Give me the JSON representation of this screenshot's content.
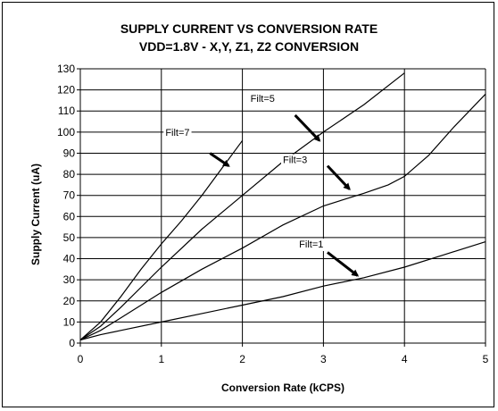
{
  "chart_data": {
    "type": "line",
    "title": "SUPPLY CURRENT VS CONVERSION RATE",
    "subtitle": "VDD=1.8V - X,Y, Z1, Z2 CONVERSION",
    "xlabel": "Conversion Rate (kCPS)",
    "ylabel": "Supply Current (uA)",
    "xlim": [
      0,
      5
    ],
    "ylim": [
      0,
      130
    ],
    "xticks": [
      0,
      1,
      2,
      3,
      4,
      5
    ],
    "yticks": [
      0,
      10,
      20,
      30,
      40,
      50,
      60,
      70,
      80,
      90,
      100,
      110,
      120,
      130
    ],
    "grid": true,
    "legend": "none",
    "series": [
      {
        "name": "Filt=7",
        "points": [
          [
            0,
            1.5
          ],
          [
            0.25,
            10
          ],
          [
            0.5,
            22
          ],
          [
            0.75,
            35
          ],
          [
            1,
            47
          ],
          [
            1.25,
            58
          ],
          [
            1.5,
            70
          ],
          [
            1.75,
            83
          ],
          [
            2,
            96
          ]
        ]
      },
      {
        "name": "Filt=5",
        "points": [
          [
            0,
            1.5
          ],
          [
            0.25,
            8
          ],
          [
            0.5,
            17
          ],
          [
            1,
            36
          ],
          [
            1.5,
            54
          ],
          [
            2,
            70
          ],
          [
            2.5,
            86
          ],
          [
            3,
            100
          ],
          [
            3.5,
            113
          ],
          [
            4,
            128
          ]
        ]
      },
      {
        "name": "Filt=3",
        "points": [
          [
            0,
            1.5
          ],
          [
            0.25,
            6
          ],
          [
            0.5,
            12
          ],
          [
            1,
            24
          ],
          [
            1.5,
            35
          ],
          [
            2,
            45
          ],
          [
            2.5,
            56
          ],
          [
            3,
            65
          ],
          [
            3.5,
            71
          ],
          [
            3.8,
            75
          ],
          [
            4,
            79
          ],
          [
            4.3,
            89
          ],
          [
            4.6,
            102
          ],
          [
            5,
            118
          ]
        ]
      },
      {
        "name": "Filt=1",
        "points": [
          [
            0,
            1.5
          ],
          [
            0.25,
            4
          ],
          [
            0.5,
            6
          ],
          [
            1,
            10
          ],
          [
            1.5,
            14
          ],
          [
            2,
            18
          ],
          [
            2.5,
            22
          ],
          [
            3,
            27
          ],
          [
            3.5,
            31
          ],
          [
            4,
            36
          ],
          [
            4.5,
            42
          ],
          [
            5,
            48
          ]
        ]
      }
    ],
    "annotations": [
      {
        "text": "Filt=7",
        "label_x": 1.05,
        "label_y": 100,
        "arrow_from": [
          1.6,
          90
        ],
        "arrow_to": [
          1.83,
          84
        ]
      },
      {
        "text": "Filt=5",
        "label_x": 2.1,
        "label_y": 116,
        "arrow_from": [
          2.65,
          108
        ],
        "arrow_to": [
          2.95,
          96
        ]
      },
      {
        "text": "Filt=3",
        "label_x": 2.5,
        "label_y": 87,
        "arrow_from": [
          3.05,
          84
        ],
        "arrow_to": [
          3.32,
          73
        ]
      },
      {
        "text": "Filt=1",
        "label_x": 2.7,
        "label_y": 47,
        "arrow_from": [
          3.05,
          43
        ],
        "arrow_to": [
          3.42,
          32
        ]
      }
    ]
  }
}
